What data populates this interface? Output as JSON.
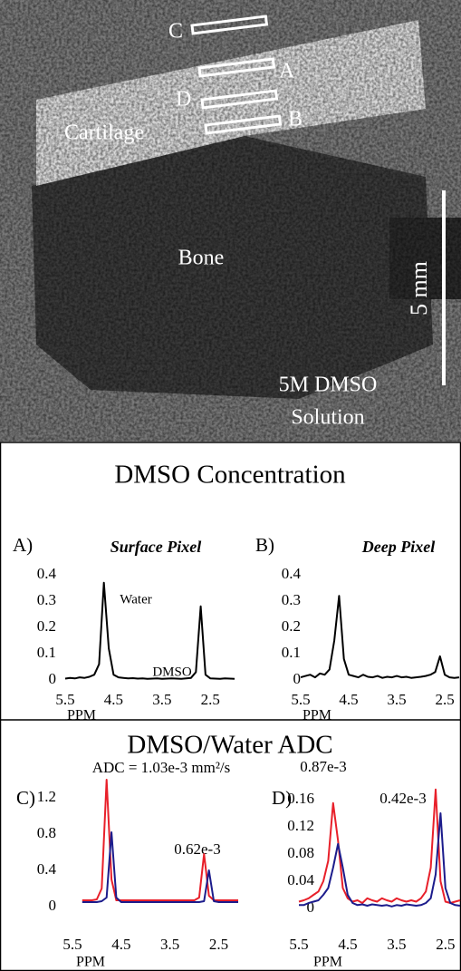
{
  "image": {
    "labels": [
      "C",
      "A",
      "D",
      "B",
      "Cartilage",
      "Bone",
      "5 mm",
      "5M DMSO",
      "Solution"
    ]
  },
  "panel_titles": [
    "DMSO Concentration",
    "DMSO/Water ADC"
  ],
  "chart_data": [
    {
      "type": "line",
      "label": "A)",
      "subtitle": "Surface Pixel",
      "xlabel": "PPM",
      "annotations": [
        "Water",
        "DMSO"
      ],
      "color": "#000000",
      "x": [
        5.5,
        5.4,
        5.3,
        5.2,
        5.1,
        5.0,
        4.9,
        4.8,
        4.7,
        4.6,
        4.5,
        4.4,
        4.3,
        4.2,
        4.1,
        4.0,
        3.9,
        3.8,
        3.7,
        3.6,
        3.5,
        3.4,
        3.3,
        3.2,
        3.1,
        3.0,
        2.9,
        2.8,
        2.7,
        2.6,
        2.5,
        2.4,
        2.3,
        2.2,
        2.1,
        2.0
      ],
      "values": [
        0.005,
        0.008,
        0.006,
        0.01,
        0.008,
        0.012,
        0.02,
        0.06,
        0.37,
        0.12,
        0.02,
        0.01,
        0.008,
        0.006,
        0.007,
        0.005,
        0.006,
        0.004,
        0.005,
        0.006,
        0.004,
        0.005,
        0.006,
        0.005,
        0.004,
        0.006,
        0.008,
        0.03,
        0.28,
        0.02,
        0.006,
        0.005,
        0.004,
        0.006,
        0.005,
        0.004
      ],
      "xlim": [
        5.5,
        2.0
      ],
      "ylim": [
        0,
        0.4
      ],
      "xticks": [
        5.5,
        4.5,
        3.5,
        2.5
      ],
      "yticks": [
        0,
        0.1,
        0.2,
        0.3,
        0.4
      ]
    },
    {
      "type": "line",
      "label": "B)",
      "subtitle": "Deep Pixel",
      "xlabel": "PPM",
      "color": "#000000",
      "x": [
        5.5,
        5.4,
        5.3,
        5.2,
        5.1,
        5.0,
        4.9,
        4.8,
        4.7,
        4.6,
        4.5,
        4.4,
        4.3,
        4.2,
        4.1,
        4.0,
        3.9,
        3.8,
        3.7,
        3.6,
        3.5,
        3.4,
        3.3,
        3.2,
        3.1,
        3.0,
        2.9,
        2.8,
        2.7,
        2.6,
        2.5,
        2.4,
        2.3,
        2.2
      ],
      "values": [
        0.01,
        0.015,
        0.02,
        0.01,
        0.025,
        0.02,
        0.04,
        0.15,
        0.32,
        0.08,
        0.02,
        0.015,
        0.01,
        0.02,
        0.012,
        0.01,
        0.015,
        0.008,
        0.012,
        0.01,
        0.015,
        0.01,
        0.012,
        0.008,
        0.01,
        0.012,
        0.015,
        0.02,
        0.03,
        0.09,
        0.02,
        0.01,
        0.008,
        0.01
      ],
      "xlim": [
        5.5,
        2.2
      ],
      "ylim": [
        0,
        0.4
      ],
      "xticks": [
        5.5,
        4.5,
        3.5,
        2.5
      ],
      "yticks": [
        0,
        0.1,
        0.2,
        0.3,
        0.4
      ]
    },
    {
      "type": "line",
      "label": "C)",
      "xlabel": "PPM",
      "annotations": [
        "ADC = 1.03e-3 mm²/s",
        "0.62e-3"
      ],
      "x": [
        5.3,
        5.2,
        5.1,
        5.0,
        4.9,
        4.8,
        4.7,
        4.6,
        4.5,
        4.4,
        4.3,
        4.2,
        4.1,
        4.0,
        3.9,
        3.8,
        3.7,
        3.6,
        3.5,
        3.4,
        3.3,
        3.2,
        3.1,
        3.0,
        2.9,
        2.8,
        2.7,
        2.6,
        2.5,
        2.4,
        2.3,
        2.2,
        2.1
      ],
      "series": [
        {
          "color": "#e8202a",
          "values": [
            0.07,
            0.07,
            0.07,
            0.08,
            0.2,
            1.4,
            0.3,
            0.07,
            0.07,
            0.07,
            0.07,
            0.07,
            0.07,
            0.07,
            0.07,
            0.07,
            0.07,
            0.07,
            0.07,
            0.07,
            0.07,
            0.07,
            0.07,
            0.07,
            0.1,
            0.58,
            0.12,
            0.07,
            0.07,
            0.07,
            0.07,
            0.07,
            0.07
          ]
        },
        {
          "color": "#1c1c8c",
          "values": [
            0.05,
            0.05,
            0.05,
            0.05,
            0.06,
            0.1,
            0.82,
            0.1,
            0.05,
            0.05,
            0.05,
            0.05,
            0.05,
            0.05,
            0.05,
            0.05,
            0.05,
            0.05,
            0.05,
            0.05,
            0.05,
            0.05,
            0.05,
            0.05,
            0.05,
            0.06,
            0.4,
            0.06,
            0.05,
            0.05,
            0.05,
            0.05,
            0.05
          ]
        }
      ],
      "xlim": [
        5.5,
        2.1
      ],
      "ylim": [
        0,
        1.5
      ],
      "xticks": [
        5.5,
        4.5,
        3.5,
        2.5
      ],
      "yticks": [
        0,
        0.4,
        0.8,
        1.2
      ]
    },
    {
      "type": "line",
      "label": "D)",
      "xlabel": "PPM",
      "annotations": [
        "0.87e-3",
        "0.42e-3"
      ],
      "x": [
        5.5,
        5.4,
        5.3,
        5.2,
        5.1,
        5.0,
        4.9,
        4.8,
        4.7,
        4.6,
        4.5,
        4.4,
        4.3,
        4.2,
        4.1,
        4.0,
        3.9,
        3.8,
        3.7,
        3.6,
        3.5,
        3.4,
        3.3,
        3.2,
        3.1,
        3.0,
        2.9,
        2.8,
        2.7,
        2.6,
        2.5,
        2.4,
        2.3,
        2.2
      ],
      "series": [
        {
          "color": "#e8202a",
          "values": [
            0.01,
            0.012,
            0.015,
            0.02,
            0.025,
            0.04,
            0.07,
            0.155,
            0.1,
            0.03,
            0.015,
            0.01,
            0.012,
            0.008,
            0.015,
            0.012,
            0.01,
            0.015,
            0.012,
            0.01,
            0.015,
            0.012,
            0.01,
            0.012,
            0.01,
            0.015,
            0.025,
            0.06,
            0.175,
            0.04,
            0.01,
            0.008,
            0.01,
            0.012
          ]
        },
        {
          "color": "#1c1c8c",
          "values": [
            0.005,
            0.005,
            0.008,
            0.01,
            0.012,
            0.02,
            0.03,
            0.06,
            0.095,
            0.06,
            0.02,
            0.008,
            0.005,
            0.006,
            0.004,
            0.006,
            0.005,
            0.004,
            0.005,
            0.003,
            0.005,
            0.004,
            0.006,
            0.005,
            0.004,
            0.005,
            0.008,
            0.015,
            0.05,
            0.14,
            0.03,
            0.008,
            0.005,
            0.004
          ]
        }
      ],
      "xlim": [
        5.5,
        2.2
      ],
      "ylim": [
        0,
        0.18
      ],
      "xticks": [
        5.5,
        4.5,
        3.5,
        2.5
      ],
      "yticks": [
        0,
        0.04,
        0.08,
        0.12,
        0.16
      ]
    }
  ]
}
